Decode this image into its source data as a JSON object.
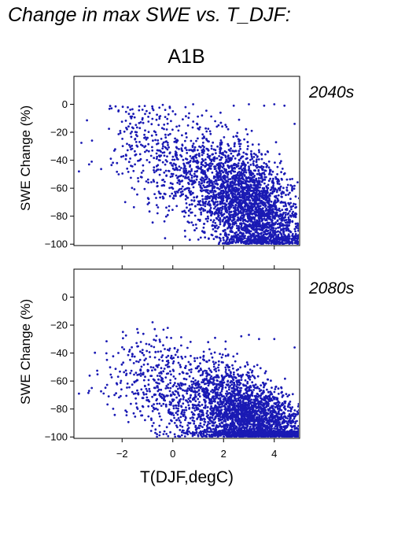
{
  "header": {
    "title": "Change in max SWE vs. T_DJF:",
    "scenario": "A1B"
  },
  "colors": {
    "point": "#1a1ab4",
    "panel_label": "#1a1ab4",
    "axis": "#000000"
  },
  "chart_data": [
    {
      "type": "scatter",
      "panel_label": "2040s",
      "xlabel": "T(DJF,degC)",
      "ylabel": "SWE Change (%)",
      "xlim": [
        -3.9,
        5.0
      ],
      "ylim": [
        -101,
        20
      ],
      "xticks": [
        -2,
        0,
        2,
        4
      ],
      "yticks": [
        0,
        -20,
        -40,
        -60,
        -80,
        -100
      ],
      "ytick_labels": [
        "0",
        "−20",
        "−40",
        "−60",
        "−80",
        "−100"
      ],
      "x_tick_labels_shown": false,
      "n_points": 3200,
      "trend": "SWE change becomes more negative as DJF temperature increases; near 0% to -60% below 0 degC, dense cloud -40% to -100% from 1 to 5 degC",
      "anchors": {
        "x": [
          -3.7,
          -3.3,
          -3.2,
          -2.2,
          -1.8,
          -1.3,
          -0.8,
          -0.3,
          0.0,
          0.5,
          0.8,
          2.4,
          3.0,
          3.6,
          4.0,
          4.4,
          4.8
        ],
        "y": [
          -48,
          -43,
          -41,
          -42,
          -46,
          -17,
          -3,
          -4,
          -5,
          -2,
          0,
          -1,
          0,
          -1,
          0,
          -1,
          -14
        ]
      }
    },
    {
      "type": "scatter",
      "panel_label": "2080s",
      "xlabel": "T(DJF,degC)",
      "ylabel": "SWE Change (%)",
      "xlim": [
        -3.9,
        5.0
      ],
      "ylim": [
        -101,
        20
      ],
      "xticks": [
        -2,
        0,
        2,
        4
      ],
      "yticks": [
        0,
        -20,
        -40,
        -60,
        -80,
        -100
      ],
      "ytick_labels": [
        "0",
        "−20",
        "−40",
        "−60",
        "−80",
        "−100"
      ],
      "x_tick_labels": [
        "−2",
        "0",
        "2",
        "4"
      ],
      "n_points": 3400,
      "trend": "Most points near -80% to -100% above 1 degC; sparse points between -20% and -70% at cooler temperatures",
      "anchors": {
        "x": [
          -3.7,
          -3.3,
          -2.3,
          -1.2,
          -0.8,
          -0.2,
          0.7,
          2.7,
          3.0,
          3.4,
          4.0,
          4.8
        ],
        "y": [
          -69,
          -67,
          -70,
          -40,
          -18,
          -22,
          -32,
          -28,
          -27,
          -30,
          -30,
          -36
        ]
      }
    }
  ]
}
